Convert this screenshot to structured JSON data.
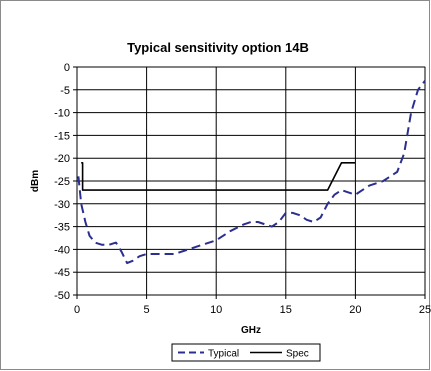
{
  "chart_data": {
    "type": "line",
    "title": "Typical sensitivity option 14B",
    "xlabel": "GHz",
    "ylabel": "dBm",
    "xlim": [
      0,
      25
    ],
    "ylim": [
      -50,
      0
    ],
    "x_ticks": [
      0,
      5,
      10,
      15,
      20,
      25
    ],
    "y_ticks": [
      0,
      -5,
      -10,
      -15,
      -20,
      -25,
      -30,
      -35,
      -40,
      -45,
      -50
    ],
    "x_tick_labels": [
      "0",
      "5",
      "10",
      "15",
      "20",
      "25"
    ],
    "y_tick_labels": [
      "0",
      "-5",
      "-10",
      "-15",
      "-20",
      "-25",
      "-30",
      "-35",
      "-40",
      "-45",
      "-50"
    ],
    "grid": "on",
    "legend_position": "bottom",
    "series": [
      {
        "name": "Typical",
        "style": "dashed",
        "color": "#2b2f8f",
        "x": [
          0.1,
          0.3,
          0.6,
          0.9,
          1.3,
          1.8,
          2.3,
          2.8,
          3.2,
          3.6,
          4.0,
          4.5,
          5.0,
          6.0,
          7.0,
          8.0,
          9.0,
          10.0,
          11.0,
          12.0,
          12.5,
          13.0,
          13.5,
          14.0,
          14.5,
          15.0,
          15.5,
          16.0,
          16.5,
          17.0,
          17.5,
          18.0,
          18.5,
          19.0,
          19.5,
          20.0,
          20.5,
          21.0,
          21.5,
          22.0,
          22.5,
          23.0,
          23.5,
          24.0,
          24.5,
          25.0
        ],
        "y": [
          -24,
          -30,
          -34,
          -37,
          -38.5,
          -39,
          -39,
          -38.5,
          -40.5,
          -43,
          -42.5,
          -41.5,
          -41,
          -41,
          -41,
          -40,
          -39,
          -38,
          -36,
          -34.5,
          -34,
          -34,
          -34.5,
          -35,
          -34,
          -32,
          -32,
          -32.5,
          -33.5,
          -34,
          -33,
          -30,
          -28,
          -27,
          -27.5,
          -28,
          -27,
          -26,
          -25.5,
          -25,
          -24,
          -23,
          -19,
          -10,
          -5,
          -3
        ]
      },
      {
        "name": "Spec",
        "style": "solid",
        "color": "#000000",
        "x": [
          0.3,
          0.4,
          0.4,
          18.0,
          19.0,
          20.0
        ],
        "y": [
          -21,
          -21,
          -27,
          -27,
          -21,
          -21
        ]
      }
    ]
  }
}
